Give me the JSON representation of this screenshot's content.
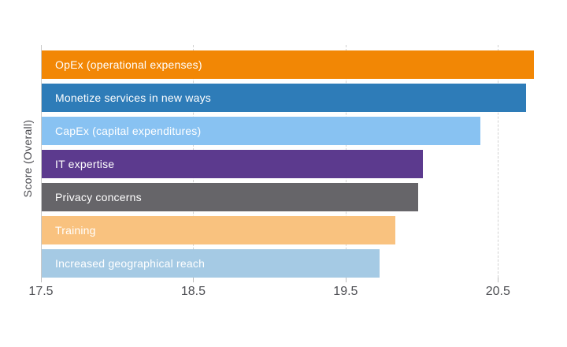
{
  "chart_data": {
    "type": "bar",
    "orientation": "horizontal",
    "title": "",
    "xlabel": "",
    "ylabel": "Score (Overall)",
    "categories": [
      "OpEx (operational expenses)",
      "Monetize services in new ways",
      "CapEx (capital expenditures)",
      "IT expertise",
      "Privacy concerns",
      "Training",
      "Increased geographical reach"
    ],
    "values": [
      20.73,
      20.68,
      20.38,
      20.0,
      19.97,
      19.82,
      19.72
    ],
    "bar_colors": [
      "#f28705",
      "#2e7cb8",
      "#88c2f2",
      "#5c3a8e",
      "#666569",
      "#f9c27f",
      "#a5cae4"
    ],
    "xlim": [
      17.5,
      20.85
    ],
    "xticks": [
      {
        "value": 17.5,
        "label": "17.5"
      },
      {
        "value": 18.5,
        "label": "18.5"
      },
      {
        "value": 19.5,
        "label": "19.5"
      },
      {
        "value": 20.5,
        "label": "20.5"
      }
    ],
    "grid": "vertical-dashed",
    "legend": "none",
    "bar_label_position": "inside-left",
    "bar_label_color": "#ffffff"
  },
  "colors": {
    "background": "#ffffff",
    "gridline": "#d1d1d1",
    "axis_line": "#c9c9c9",
    "tick_mark": "#bdbdbd",
    "tick_text": "#4d4e53",
    "axis_title_text": "#4b4b50"
  }
}
